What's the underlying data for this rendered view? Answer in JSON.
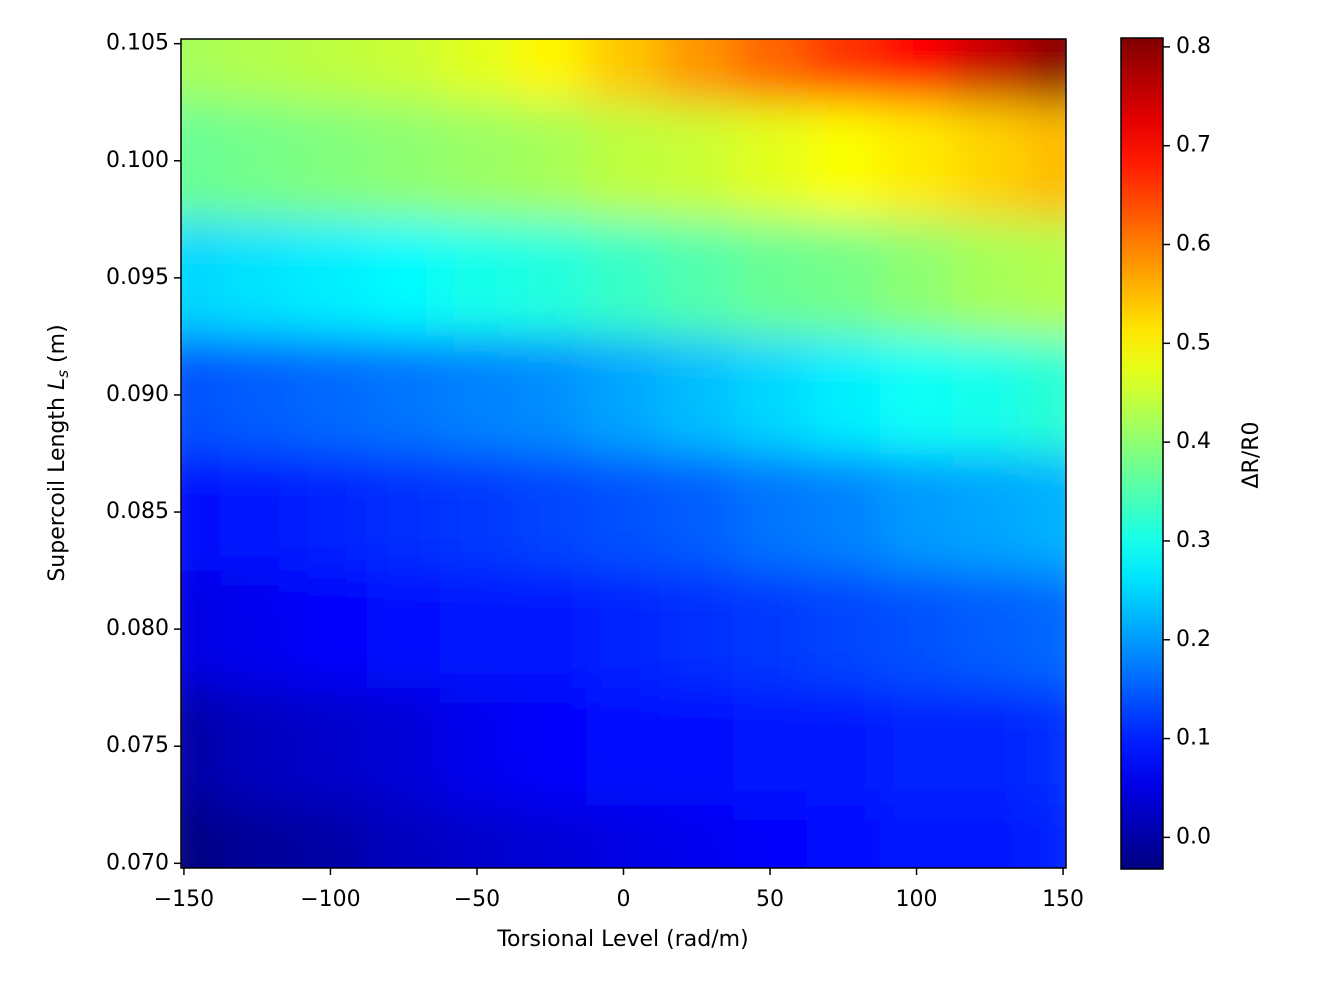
{
  "chart_data": {
    "type": "heatmap",
    "x_label": "Torsional Level (rad/m)",
    "y_label": {
      "text": "Supercoil Length",
      "symbol": "L",
      "subscript": "s",
      "unit": "(m)"
    },
    "colorbar_label": "ΔR/R0",
    "colormap": "jet",
    "x": [
      -150,
      -125,
      -100,
      -75,
      -50,
      -25,
      0,
      25,
      50,
      75,
      100,
      125,
      150
    ],
    "y": [
      0.07,
      0.075,
      0.08,
      0.085,
      0.09,
      0.095,
      0.1,
      0.105
    ],
    "z": [
      [
        -0.03,
        -0.01,
        0.0,
        0.02,
        0.03,
        0.04,
        0.05,
        0.06,
        0.07,
        0.08,
        0.09,
        0.09,
        0.1
      ],
      [
        0.0,
        0.02,
        0.03,
        0.04,
        0.06,
        0.07,
        0.08,
        0.08,
        0.09,
        0.09,
        0.1,
        0.1,
        0.11
      ],
      [
        0.05,
        0.06,
        0.07,
        0.08,
        0.09,
        0.09,
        0.1,
        0.11,
        0.12,
        0.13,
        0.14,
        0.15,
        0.16
      ],
      [
        0.08,
        0.09,
        0.1,
        0.11,
        0.12,
        0.13,
        0.14,
        0.15,
        0.17,
        0.18,
        0.2,
        0.21,
        0.22
      ],
      [
        0.14,
        0.15,
        0.16,
        0.17,
        0.18,
        0.19,
        0.21,
        0.23,
        0.25,
        0.27,
        0.29,
        0.3,
        0.32
      ],
      [
        0.25,
        0.26,
        0.27,
        0.28,
        0.3,
        0.31,
        0.33,
        0.35,
        0.37,
        0.38,
        0.4,
        0.42,
        0.43
      ],
      [
        0.37,
        0.38,
        0.39,
        0.4,
        0.41,
        0.42,
        0.44,
        0.45,
        0.47,
        0.49,
        0.51,
        0.53,
        0.55
      ],
      [
        0.42,
        0.43,
        0.44,
        0.45,
        0.47,
        0.5,
        0.54,
        0.58,
        0.62,
        0.66,
        0.7,
        0.75,
        0.8
      ]
    ],
    "xlim": [
      -151,
      151
    ],
    "ylim": [
      0.0698,
      0.1052
    ],
    "clim": [
      -0.032,
      0.809
    ],
    "xticks": [
      {
        "value": -150,
        "label": "−150"
      },
      {
        "value": -100,
        "label": "−100"
      },
      {
        "value": -50,
        "label": "−50"
      },
      0,
      50,
      100,
      150
    ],
    "yticks": [
      {
        "value": 0.07,
        "label": "0.070"
      },
      {
        "value": 0.075,
        "label": "0.075"
      },
      {
        "value": 0.08,
        "label": "0.080"
      },
      {
        "value": 0.085,
        "label": "0.085"
      },
      {
        "value": 0.09,
        "label": "0.090"
      },
      {
        "value": 0.095,
        "label": "0.095"
      },
      {
        "value": 0.1,
        "label": "0.100"
      },
      {
        "value": 0.105,
        "label": "0.105"
      }
    ],
    "cticks": [
      {
        "value": 0,
        "label": "0.0"
      },
      0.1,
      0.2,
      0.3,
      0.4,
      0.5,
      0.6,
      0.7,
      0.8
    ]
  }
}
